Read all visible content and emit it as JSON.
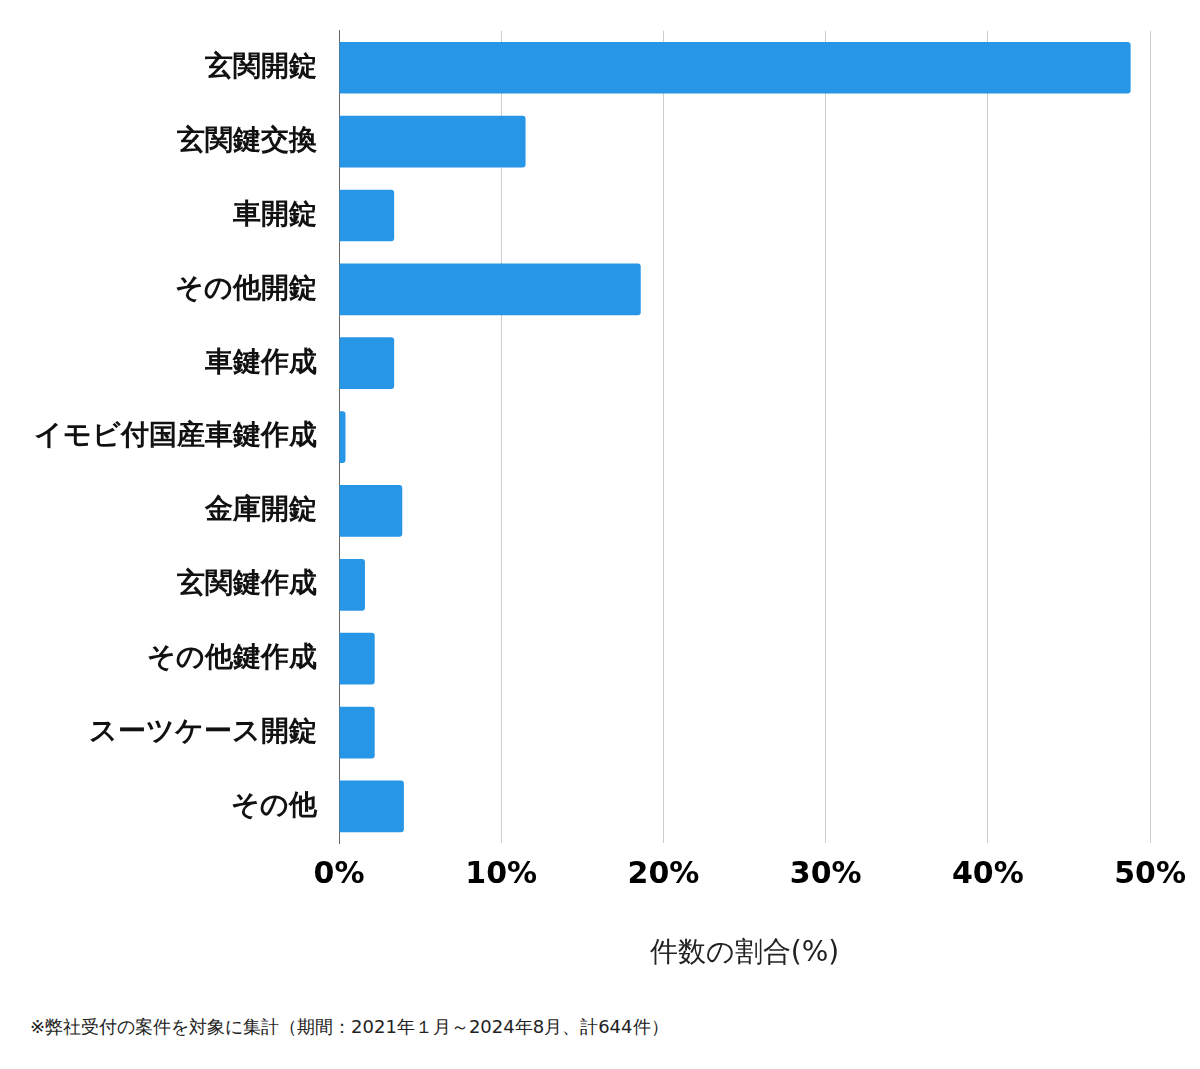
{
  "chart_data": {
    "type": "bar",
    "orientation": "horizontal",
    "categories": [
      "玄関開錠",
      "玄関鍵交換",
      "車開錠",
      "その他開錠",
      "車鍵作成",
      "イモビ付国産車鍵作成",
      "金庫開錠",
      "玄関鍵作成",
      "その他鍵作成",
      "スーツケース開錠",
      "その他"
    ],
    "values": [
      48.8,
      11.5,
      3.4,
      18.6,
      3.4,
      0.4,
      3.9,
      1.6,
      2.2,
      2.2,
      4.0
    ],
    "color": "#2896e6",
    "x_label": "件数の割合(%)",
    "xlim": [
      0,
      50
    ],
    "xticks": [
      {
        "value": 0,
        "label": "0%"
      },
      {
        "value": 10,
        "label": "10%"
      },
      {
        "value": 20,
        "label": "20%"
      },
      {
        "value": 30,
        "label": "30%"
      },
      {
        "value": 40,
        "label": "40%"
      },
      {
        "value": 50,
        "label": "50%"
      }
    ],
    "grid": true,
    "annotations": [
      "※弊社受付の案件を対象に集計（期間：2021年１月～2024年8月、計644件）"
    ]
  }
}
